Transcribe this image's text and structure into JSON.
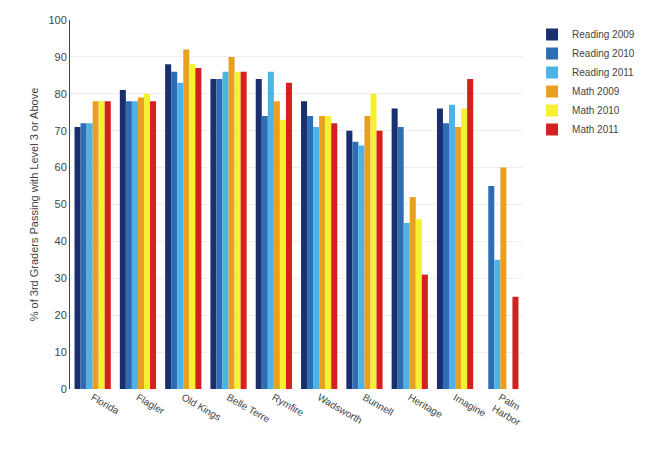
{
  "chart_data": {
    "type": "bar",
    "categories": [
      "Florida",
      "Flagler",
      "Old Kings",
      "Belle Terre",
      "Rymfire",
      "Wadsworth",
      "Bunnell",
      "Heritage",
      "Imagine",
      "Palm\nHarbor"
    ],
    "series": [
      {
        "name": "Reading 2009",
        "color": "#1a2f6e",
        "values": [
          71,
          81,
          88,
          84,
          84,
          78,
          70,
          76,
          76,
          null
        ]
      },
      {
        "name": "Reading 2010",
        "color": "#2e6db4",
        "values": [
          72,
          78,
          86,
          84,
          74,
          74,
          67,
          71,
          72,
          55
        ]
      },
      {
        "name": "Reading 2011",
        "color": "#4db3e6",
        "values": [
          72,
          78,
          83,
          86,
          86,
          71,
          66,
          45,
          77,
          35
        ]
      },
      {
        "name": "Math 2009",
        "color": "#e8a020",
        "values": [
          78,
          79,
          92,
          90,
          78,
          74,
          74,
          52,
          71,
          60
        ]
      },
      {
        "name": "Math 2010",
        "color": "#f5f030",
        "values": [
          78,
          80,
          88,
          86,
          73,
          74,
          80,
          46,
          76,
          null
        ]
      },
      {
        "name": "Math 2011",
        "color": "#d42020",
        "values": [
          78,
          78,
          87,
          86,
          83,
          72,
          70,
          31,
          84,
          25
        ]
      }
    ],
    "ylabel": "% of 3rd Graders Passing with Level 3 or Above",
    "ylim": [
      0,
      100
    ],
    "yticks": [
      0,
      10,
      20,
      30,
      40,
      50,
      60,
      70,
      80,
      90,
      100
    ],
    "grid": true,
    "legend": "upper right"
  }
}
